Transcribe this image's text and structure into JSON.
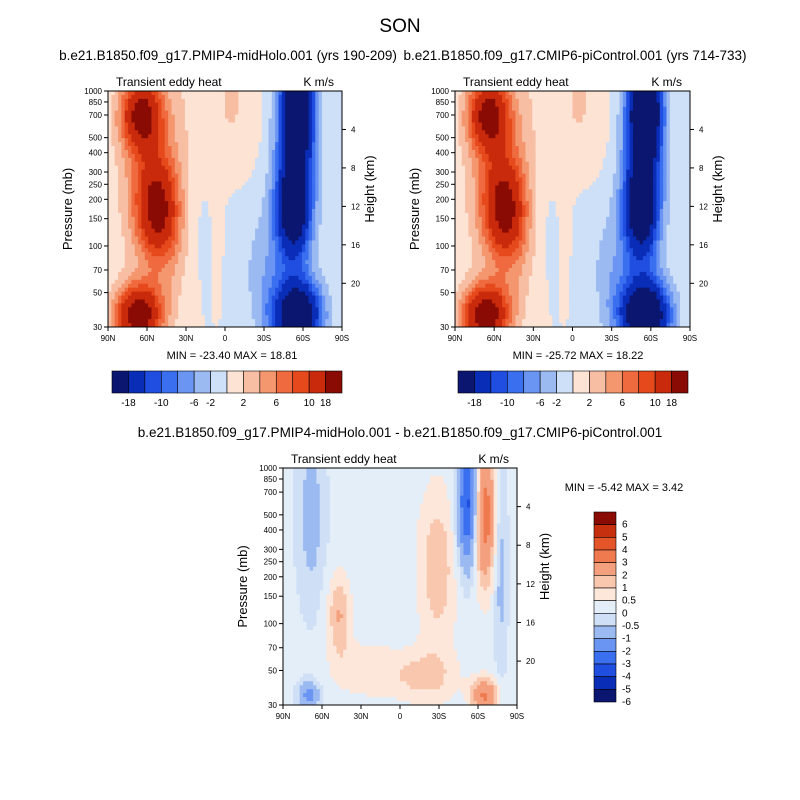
{
  "chart_data": {
    "type": "contour",
    "suptitle": "SON",
    "colors": {
      "main_scale": [
        "#0a1670",
        "#0a2db8",
        "#1f4ee0",
        "#3a6ff0",
        "#6a95f3",
        "#9cbaf2",
        "#cde0f7",
        "#fde3d3",
        "#f8bea3",
        "#f4976f",
        "#ef6a3e",
        "#e64a1c",
        "#c92a0c",
        "#8a0b04"
      ],
      "diff_scale": [
        "#0a1670",
        "#0a2db8",
        "#1f4ee0",
        "#3a6ff0",
        "#6a95f3",
        "#9cbaf2",
        "#cfe0f6",
        "#e4eef9",
        "#fde7da",
        "#f8c7ae",
        "#f4a07e",
        "#ef7a4f",
        "#e4552a",
        "#c7300f",
        "#8a0b04"
      ]
    },
    "panels": [
      {
        "title": "b.e21.B1850.f09_g17.PMIP4-midHolo.001 (yrs 190-209)",
        "left_label": "Transient eddy heat",
        "right_label": "K m/s",
        "ylabel": "Pressure (mb)",
        "ylabel_right": "Height (km)",
        "x_ticks": [
          "90N",
          "60N",
          "30N",
          "0",
          "30S",
          "60S",
          "90S"
        ],
        "y_ticks": [
          "30",
          "50",
          "70",
          "100",
          "150",
          "200",
          "250",
          "300",
          "400",
          "500",
          "700",
          "850",
          "1000"
        ],
        "height_ticks": [
          "20",
          "16",
          "12",
          "8",
          "4"
        ],
        "stats": "MIN = -23.40   MAX =  18.81",
        "min": -23.4,
        "max": 18.81,
        "colorbar_labels": [
          "-18",
          "-10",
          "-6",
          "-2",
          "2",
          "6",
          "10",
          "18"
        ],
        "levels": [
          -18,
          -14,
          -10,
          -8,
          -6,
          -4,
          -2,
          0,
          2,
          4,
          6,
          8,
          10,
          14,
          18
        ]
      },
      {
        "title": "b.e21.B1850.f09_g17.CMIP6-piControl.001 (yrs 714-733)",
        "left_label": "Transient eddy heat",
        "right_label": "K m/s",
        "ylabel": "Pressure (mb)",
        "ylabel_right": "Height (km)",
        "x_ticks": [
          "90N",
          "60N",
          "30N",
          "0",
          "30S",
          "60S",
          "90S"
        ],
        "y_ticks": [
          "30",
          "50",
          "70",
          "100",
          "150",
          "200",
          "250",
          "300",
          "400",
          "500",
          "700",
          "850",
          "1000"
        ],
        "height_ticks": [
          "20",
          "16",
          "12",
          "8",
          "4"
        ],
        "stats": "MIN = -25.72   MAX =  18.22",
        "min": -25.72,
        "max": 18.22,
        "colorbar_labels": [
          "-18",
          "-10",
          "-6",
          "-2",
          "2",
          "6",
          "10",
          "18"
        ],
        "levels": [
          -18,
          -14,
          -10,
          -8,
          -6,
          -4,
          -2,
          0,
          2,
          4,
          6,
          8,
          10,
          14,
          18
        ]
      },
      {
        "title": "b.e21.B1850.f09_g17.PMIP4-midHolo.001 - b.e21.B1850.f09_g17.CMIP6-piControl.001",
        "left_label": "Transient eddy heat",
        "right_label": "K m/s",
        "ylabel": "Pressure (mb)",
        "ylabel_right": "Height (km)",
        "x_ticks": [
          "90N",
          "60N",
          "30N",
          "0",
          "30S",
          "60S",
          "90S"
        ],
        "y_ticks": [
          "30",
          "50",
          "70",
          "100",
          "150",
          "200",
          "250",
          "300",
          "400",
          "500",
          "700",
          "850",
          "1000"
        ],
        "height_ticks": [
          "20",
          "16",
          "12",
          "8",
          "4"
        ],
        "stats": "MIN =  -5.42   MAX =   3.42",
        "min": -5.42,
        "max": 3.42,
        "colorbar_labels": [
          "6",
          "5",
          "4",
          "3",
          "2",
          "1",
          "0.5",
          "0",
          "-0.5",
          "-1",
          "-2",
          "-3",
          "-4",
          "-5",
          "-6"
        ],
        "levels": [
          -6,
          -5,
          -4,
          -3,
          -2,
          -1,
          -0.5,
          0,
          0.5,
          1,
          2,
          3,
          4,
          5,
          6
        ]
      }
    ],
    "xlim": [
      90,
      -90
    ],
    "ylim_mb": [
      1000,
      30
    ]
  }
}
